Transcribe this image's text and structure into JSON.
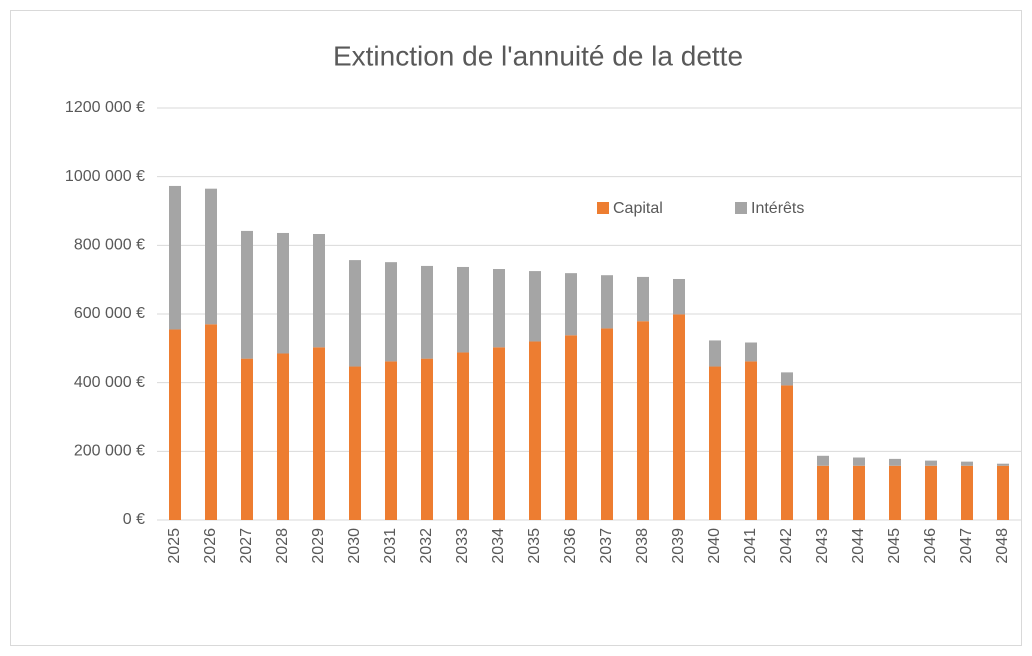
{
  "chart_data": {
    "type": "stacked_bar",
    "title": "Extinction de l'annuité de la dette",
    "categories": [
      "2025",
      "2026",
      "2027",
      "2028",
      "2029",
      "2030",
      "2031",
      "2032",
      "2033",
      "2034",
      "2035",
      "2036",
      "2037",
      "2038",
      "2039",
      "2040",
      "2041",
      "2042",
      "2043",
      "2044",
      "2045",
      "2046",
      "2047",
      "2048"
    ],
    "series": [
      {
        "name": "Capital",
        "color": "#ed7d31",
        "values": [
          555000,
          570000,
          470000,
          485000,
          503000,
          447000,
          462000,
          470000,
          488000,
          503000,
          520000,
          538000,
          558000,
          579000,
          599000,
          447000,
          462000,
          392000,
          158000,
          158000,
          158000,
          158000,
          158000,
          158000
        ]
      },
      {
        "name": "Intérêts",
        "color": "#a5a5a5",
        "values": [
          418000,
          395000,
          372000,
          351000,
          330000,
          310000,
          289000,
          270000,
          249000,
          228000,
          205000,
          181000,
          155000,
          129000,
          103000,
          76000,
          55000,
          38000,
          29000,
          24000,
          20000,
          15000,
          12000,
          6000
        ]
      }
    ],
    "ylim": [
      0,
      1200000
    ],
    "yticks": [
      {
        "value": 0,
        "label": "0 €"
      },
      {
        "value": 200000,
        "label": "200 000 €"
      },
      {
        "value": 400000,
        "label": "400 000 €"
      },
      {
        "value": 600000,
        "label": "600 000 €"
      },
      {
        "value": 800000,
        "label": "800 000 €"
      },
      {
        "value": 1000000,
        "label": "1000 000 €"
      },
      {
        "value": 1200000,
        "label": "1200 000 €"
      }
    ],
    "grid": true
  }
}
